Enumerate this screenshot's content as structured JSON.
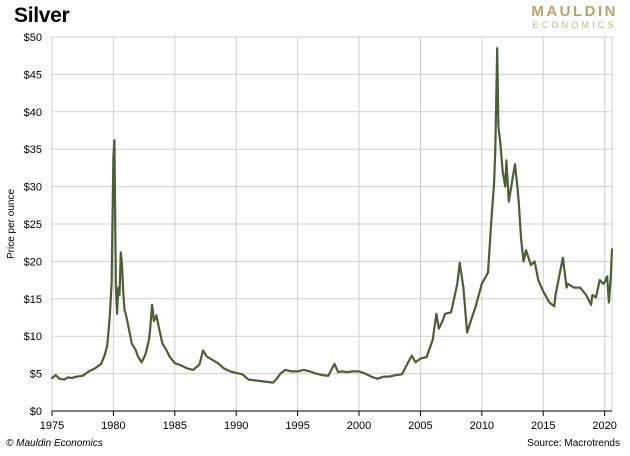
{
  "header": {
    "title": "Silver",
    "logo_main": "MAULDIN",
    "logo_sub": "ECONOMICS"
  },
  "footer": {
    "credit": "© Mauldin Economics",
    "source": "Source: Macrotrends"
  },
  "colors": {
    "line": "#4b5e34",
    "grid": "#cfcfcf",
    "logo": "#b8a36a"
  },
  "chart_data": {
    "type": "line",
    "title": "Silver",
    "xlabel": "",
    "ylabel": "Price per ounce",
    "xlim": [
      1975,
      2020.6
    ],
    "ylim": [
      0,
      50
    ],
    "grid": true,
    "legend": "none",
    "x_ticks": [
      1975,
      1980,
      1985,
      1990,
      1995,
      2000,
      2005,
      2010,
      2015,
      2020
    ],
    "y_ticks": [
      0,
      5,
      10,
      15,
      20,
      25,
      30,
      35,
      40,
      45,
      50
    ],
    "y_tick_labels": [
      "$0",
      "$5",
      "$10",
      "$15",
      "$20",
      "$25",
      "$30",
      "$35",
      "$40",
      "$45",
      "$50"
    ],
    "series": [
      {
        "x": [
          1975.0,
          1975.3,
          1975.6,
          1976.0,
          1976.3,
          1976.6,
          1977.0,
          1977.5,
          1978.0,
          1978.5,
          1979.0,
          1979.3,
          1979.5,
          1979.7,
          1979.85,
          1980.0,
          1980.08,
          1980.2,
          1980.3,
          1980.4,
          1980.5,
          1980.6,
          1980.7,
          1980.8,
          1980.9,
          1981.0,
          1981.2,
          1981.5,
          1981.8,
          1982.0,
          1982.3,
          1982.6,
          1982.9,
          1983.0,
          1983.15,
          1983.3,
          1983.5,
          1983.7,
          1984.0,
          1984.3,
          1984.6,
          1985.0,
          1985.5,
          1986.0,
          1986.5,
          1987.0,
          1987.3,
          1987.6,
          1988.0,
          1988.5,
          1989.0,
          1989.5,
          1990.0,
          1990.5,
          1991.0,
          1991.5,
          1992.0,
          1992.5,
          1993.0,
          1993.3,
          1993.6,
          1994.0,
          1994.5,
          1995.0,
          1995.5,
          1996.0,
          1996.5,
          1997.0,
          1997.5,
          1998.0,
          1998.3,
          1998.6,
          1999.0,
          1999.5,
          2000.0,
          2000.5,
          2001.0,
          2001.5,
          2002.0,
          2002.5,
          2003.0,
          2003.5,
          2004.0,
          2004.3,
          2004.6,
          2005.0,
          2005.5,
          2006.0,
          2006.3,
          2006.5,
          2006.8,
          2007.0,
          2007.5,
          2008.0,
          2008.2,
          2008.5,
          2008.8,
          2009.0,
          2009.5,
          2010.0,
          2010.5,
          2010.8,
          2011.0,
          2011.1,
          2011.25,
          2011.35,
          2011.5,
          2011.7,
          2011.9,
          2012.0,
          2012.2,
          2012.5,
          2012.7,
          2012.9,
          2013.0,
          2013.2,
          2013.4,
          2013.6,
          2013.9,
          2014.0,
          2014.3,
          2014.6,
          2015.0,
          2015.5,
          2015.9,
          2016.0,
          2016.3,
          2016.6,
          2016.9,
          2017.0,
          2017.5,
          2018.0,
          2018.5,
          2018.9,
          2019.0,
          2019.3,
          2019.6,
          2019.9,
          2020.0,
          2020.2,
          2020.35,
          2020.5,
          2020.6
        ],
        "values": [
          4.4,
          4.8,
          4.3,
          4.2,
          4.5,
          4.4,
          4.6,
          4.7,
          5.3,
          5.7,
          6.3,
          7.5,
          8.8,
          12.5,
          17.0,
          34.0,
          36.2,
          16.5,
          13.0,
          16.5,
          15.5,
          21.2,
          19.5,
          16.0,
          13.5,
          13.0,
          11.5,
          9.0,
          8.2,
          7.3,
          6.5,
          7.5,
          9.5,
          11.0,
          14.2,
          12.0,
          12.8,
          11.2,
          9.0,
          8.2,
          7.2,
          6.4,
          6.1,
          5.7,
          5.5,
          6.2,
          8.1,
          7.3,
          6.9,
          6.4,
          5.7,
          5.3,
          5.1,
          4.9,
          4.2,
          4.1,
          4.0,
          3.9,
          3.8,
          4.3,
          5.0,
          5.5,
          5.3,
          5.3,
          5.5,
          5.3,
          5.0,
          4.8,
          4.7,
          6.3,
          5.2,
          5.3,
          5.2,
          5.3,
          5.3,
          5.0,
          4.6,
          4.3,
          4.6,
          4.6,
          4.8,
          4.9,
          6.5,
          7.4,
          6.5,
          7.0,
          7.2,
          9.5,
          13.0,
          11.0,
          12.0,
          13.0,
          13.2,
          17.0,
          19.8,
          16.5,
          10.5,
          11.5,
          14.0,
          17.0,
          18.5,
          26.0,
          30.5,
          35.0,
          48.5,
          38.0,
          36.0,
          32.0,
          30.0,
          33.5,
          28.0,
          31.0,
          33.0,
          30.0,
          28.0,
          23.0,
          20.0,
          21.5,
          20.0,
          19.5,
          20.0,
          17.5,
          16.0,
          14.5,
          14.0,
          15.5,
          18.0,
          20.5,
          16.5,
          17.0,
          16.5,
          16.5,
          15.5,
          14.2,
          15.5,
          15.2,
          17.5,
          17.0,
          17.2,
          18.0,
          14.5,
          18.0,
          21.6
        ]
      }
    ]
  }
}
